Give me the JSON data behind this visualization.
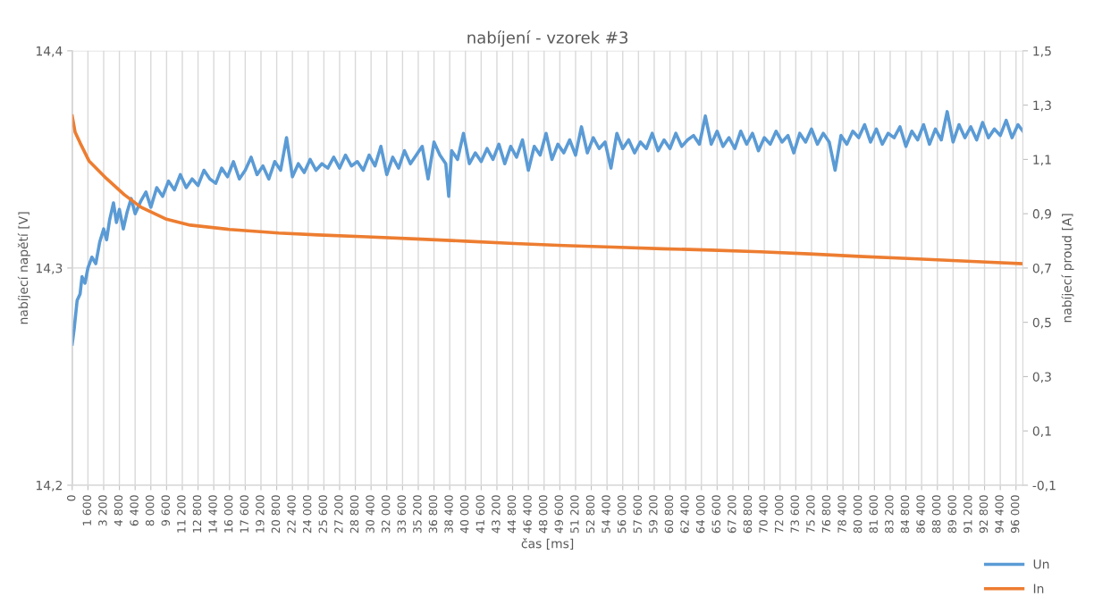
{
  "chart_data": {
    "type": "line",
    "title": "nabíjení - vzorek #3",
    "xlabel": "čas [ms]",
    "ylabel": "nabíjecí napětí [V]",
    "y2label": "nabíjecí proud [A]",
    "xlim": [
      0,
      96700
    ],
    "xticks": [
      {
        "value": 0,
        "label": "0"
      },
      {
        "value": 1600,
        "label": "1 600"
      },
      {
        "value": 3200,
        "label": "3 200"
      },
      {
        "value": 4800,
        "label": "4 800"
      },
      {
        "value": 6400,
        "label": "6 400"
      },
      {
        "value": 8000,
        "label": "8 000"
      },
      {
        "value": 9600,
        "label": "9 600"
      },
      {
        "value": 11200,
        "label": "11 200"
      },
      {
        "value": 12800,
        "label": "12 800"
      },
      {
        "value": 14400,
        "label": "14 400"
      },
      {
        "value": 16000,
        "label": "16 000"
      },
      {
        "value": 17600,
        "label": "17 600"
      },
      {
        "value": 19200,
        "label": "19 200"
      },
      {
        "value": 20800,
        "label": "20 800"
      },
      {
        "value": 22400,
        "label": "22 400"
      },
      {
        "value": 24000,
        "label": "24 000"
      },
      {
        "value": 25600,
        "label": "25 600"
      },
      {
        "value": 27200,
        "label": "27 200"
      },
      {
        "value": 28800,
        "label": "28 800"
      },
      {
        "value": 30400,
        "label": "30 400"
      },
      {
        "value": 32000,
        "label": "32 000"
      },
      {
        "value": 33600,
        "label": "33 600"
      },
      {
        "value": 35200,
        "label": "35 200"
      },
      {
        "value": 36800,
        "label": "36 800"
      },
      {
        "value": 38400,
        "label": "38 400"
      },
      {
        "value": 40000,
        "label": "40 000"
      },
      {
        "value": 41600,
        "label": "41 600"
      },
      {
        "value": 43200,
        "label": "43 200"
      },
      {
        "value": 44800,
        "label": "44 800"
      },
      {
        "value": 46400,
        "label": "46 400"
      },
      {
        "value": 48000,
        "label": "48 000"
      },
      {
        "value": 49600,
        "label": "49 600"
      },
      {
        "value": 51200,
        "label": "51 200"
      },
      {
        "value": 52800,
        "label": "52 800"
      },
      {
        "value": 54400,
        "label": "54 400"
      },
      {
        "value": 56000,
        "label": "56 000"
      },
      {
        "value": 57600,
        "label": "57 600"
      },
      {
        "value": 59200,
        "label": "59 200"
      },
      {
        "value": 60800,
        "label": "60 800"
      },
      {
        "value": 62400,
        "label": "62 400"
      },
      {
        "value": 64000,
        "label": "64 000"
      },
      {
        "value": 65600,
        "label": "65 600"
      },
      {
        "value": 67200,
        "label": "67 200"
      },
      {
        "value": 68800,
        "label": "68 800"
      },
      {
        "value": 70400,
        "label": "70 400"
      },
      {
        "value": 72000,
        "label": "72 000"
      },
      {
        "value": 73600,
        "label": "73 600"
      },
      {
        "value": 75200,
        "label": "75 200"
      },
      {
        "value": 76800,
        "label": "76 800"
      },
      {
        "value": 78400,
        "label": "78 400"
      },
      {
        "value": 80000,
        "label": "80 000"
      },
      {
        "value": 81600,
        "label": "81 600"
      },
      {
        "value": 83200,
        "label": "83 200"
      },
      {
        "value": 84800,
        "label": "84 800"
      },
      {
        "value": 86400,
        "label": "86 400"
      },
      {
        "value": 88000,
        "label": "88 000"
      },
      {
        "value": 89600,
        "label": "89 600"
      },
      {
        "value": 91200,
        "label": "91 200"
      },
      {
        "value": 92800,
        "label": "92 800"
      },
      {
        "value": 94400,
        "label": "94 400"
      },
      {
        "value": 96000,
        "label": "96 000"
      }
    ],
    "ylim": [
      14.2,
      14.4
    ],
    "yticks": [
      {
        "value": 14.2,
        "label": "14,2"
      },
      {
        "value": 14.3,
        "label": "14,3"
      },
      {
        "value": 14.4,
        "label": "14,4"
      }
    ],
    "y2lim": [
      -0.1,
      1.5
    ],
    "y2ticks": [
      {
        "value": -0.1,
        "label": "-0,1"
      },
      {
        "value": 0.1,
        "label": "0,1"
      },
      {
        "value": 0.3,
        "label": "0,3"
      },
      {
        "value": 0.5,
        "label": "0,5"
      },
      {
        "value": 0.7,
        "label": "0,7"
      },
      {
        "value": 0.9,
        "label": "0,9"
      },
      {
        "value": 1.1,
        "label": "1,1"
      },
      {
        "value": 1.3,
        "label": "1,3"
      },
      {
        "value": 1.5,
        "label": "1,5"
      }
    ],
    "grid": true,
    "legend": "bottom right",
    "marker": "none",
    "line_style": "solid",
    "series": [
      {
        "name": "Un",
        "color": "#5b9bd5",
        "x": [
          0,
          200,
          500,
          800,
          1000,
          1300,
          1600,
          2000,
          2400,
          2800,
          3200,
          3500,
          3800,
          4200,
          4500,
          4800,
          5200,
          5600,
          6000,
          6400,
          7000,
          7500,
          8000,
          8600,
          9200,
          9800,
          10400,
          11000,
          11600,
          12200,
          12800,
          13400,
          14000,
          14600,
          15200,
          15800,
          16400,
          17000,
          17600,
          18200,
          18800,
          19400,
          20000,
          20600,
          21200,
          21800,
          22400,
          23000,
          23600,
          24200,
          24800,
          25400,
          26000,
          26600,
          27200,
          27800,
          28400,
          29000,
          29600,
          30200,
          30800,
          31400,
          32000,
          32600,
          33200,
          33800,
          34400,
          35000,
          35600,
          36200,
          36800,
          37400,
          38000,
          38300,
          38600,
          39200,
          39800,
          40400,
          41000,
          41600,
          42200,
          42800,
          43400,
          44000,
          44600,
          45200,
          45800,
          46400,
          47000,
          47600,
          48200,
          48800,
          49400,
          50000,
          50600,
          51200,
          51800,
          52400,
          53000,
          53600,
          54200,
          54800,
          55400,
          56000,
          56600,
          57200,
          57800,
          58400,
          59000,
          59600,
          60200,
          60800,
          61400,
          62000,
          62600,
          63200,
          63800,
          64400,
          65000,
          65600,
          66200,
          66800,
          67400,
          68000,
          68600,
          69200,
          69800,
          70400,
          71000,
          71600,
          72200,
          72800,
          73400,
          74000,
          74600,
          75200,
          75800,
          76400,
          77000,
          77600,
          78200,
          78800,
          79400,
          80000,
          80600,
          81200,
          81800,
          82400,
          83000,
          83600,
          84200,
          84800,
          85400,
          86000,
          86600,
          87200,
          87800,
          88400,
          89000,
          89600,
          90200,
          90800,
          91400,
          92000,
          92600,
          93200,
          93800,
          94400,
          95000,
          95600,
          96200,
          96700
        ],
        "values": [
          14.265,
          14.272,
          14.285,
          14.288,
          14.296,
          14.293,
          14.3,
          14.305,
          14.302,
          14.312,
          14.318,
          14.313,
          14.322,
          14.33,
          14.321,
          14.327,
          14.318,
          14.326,
          14.332,
          14.325,
          14.331,
          14.335,
          14.328,
          14.337,
          14.333,
          14.34,
          14.336,
          14.343,
          14.337,
          14.341,
          14.338,
          14.345,
          14.341,
          14.339,
          14.346,
          14.342,
          14.349,
          14.341,
          14.345,
          14.351,
          14.343,
          14.347,
          14.341,
          14.349,
          14.345,
          14.36,
          14.342,
          14.348,
          14.344,
          14.35,
          14.345,
          14.348,
          14.346,
          14.351,
          14.346,
          14.352,
          14.347,
          14.349,
          14.345,
          14.352,
          14.347,
          14.356,
          14.343,
          14.351,
          14.346,
          14.354,
          14.348,
          14.352,
          14.356,
          14.341,
          14.358,
          14.352,
          14.348,
          14.333,
          14.354,
          14.35,
          14.362,
          14.348,
          14.353,
          14.349,
          14.355,
          14.35,
          14.357,
          14.348,
          14.356,
          14.351,
          14.359,
          14.345,
          14.356,
          14.352,
          14.362,
          14.35,
          14.357,
          14.353,
          14.359,
          14.352,
          14.365,
          14.353,
          14.36,
          14.355,
          14.358,
          14.346,
          14.362,
          14.355,
          14.359,
          14.353,
          14.358,
          14.355,
          14.362,
          14.354,
          14.359,
          14.355,
          14.362,
          14.356,
          14.359,
          14.361,
          14.357,
          14.37,
          14.357,
          14.363,
          14.356,
          14.36,
          14.355,
          14.363,
          14.357,
          14.362,
          14.354,
          14.36,
          14.357,
          14.363,
          14.358,
          14.361,
          14.353,
          14.362,
          14.358,
          14.364,
          14.357,
          14.362,
          14.358,
          14.345,
          14.361,
          14.357,
          14.363,
          14.36,
          14.366,
          14.358,
          14.364,
          14.357,
          14.362,
          14.36,
          14.365,
          14.356,
          14.363,
          14.359,
          14.366,
          14.357,
          14.364,
          14.359,
          14.372,
          14.358,
          14.366,
          14.36,
          14.365,
          14.359,
          14.367,
          14.36,
          14.364,
          14.361,
          14.368,
          14.36,
          14.366,
          14.363
        ]
      },
      {
        "name": "In",
        "color": "#ed7d31",
        "axis": "y2",
        "x": [
          0,
          300,
          800,
          1700,
          3500,
          5300,
          7000,
          9500,
          12000,
          16000,
          21000,
          25000,
          30000,
          35000,
          40000,
          45000,
          50000,
          55000,
          60000,
          65000,
          70000,
          75000,
          80000,
          85000,
          90000,
          93000,
          96700
        ],
        "values": [
          1.26,
          1.2,
          1.161,
          1.095,
          1.029,
          0.97,
          0.924,
          0.881,
          0.858,
          0.842,
          0.829,
          0.822,
          0.815,
          0.807,
          0.799,
          0.79,
          0.783,
          0.777,
          0.771,
          0.766,
          0.76,
          0.752,
          0.743,
          0.735,
          0.727,
          0.722,
          0.716
        ]
      }
    ]
  }
}
